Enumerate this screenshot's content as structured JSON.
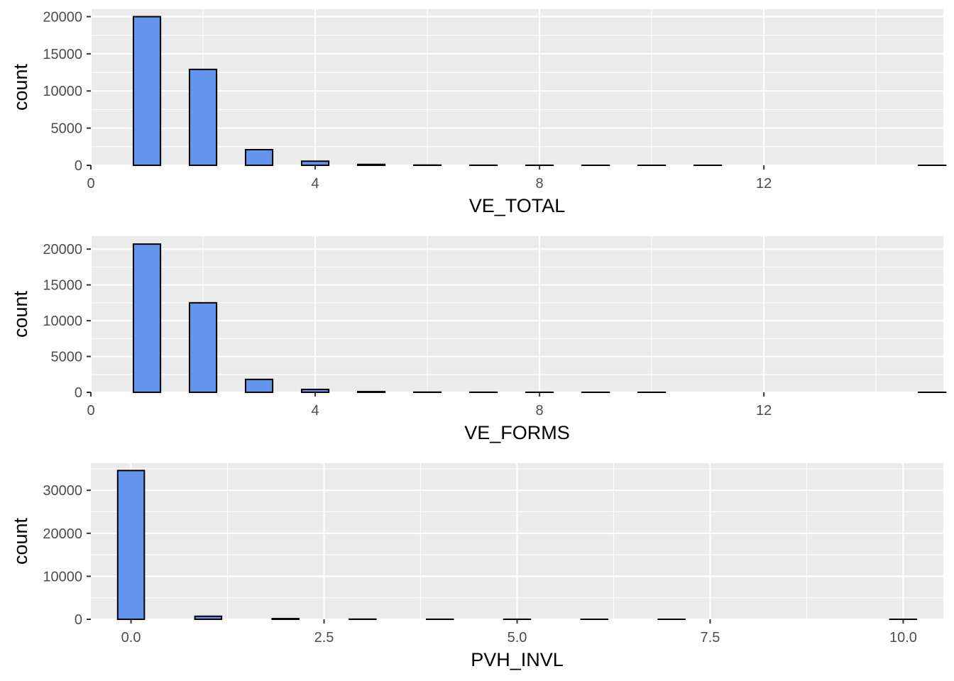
{
  "chart_data": [
    {
      "type": "bar",
      "subtype": "histogram",
      "xlabel": "VE_TOTAL",
      "ylabel": "count",
      "xlim": [
        0,
        15.2
      ],
      "ylim": [
        0,
        21000
      ],
      "xticks": [
        0,
        4,
        8,
        12
      ],
      "xtick_labels": [
        "0",
        "4",
        "8",
        "12"
      ],
      "yticks": [
        0,
        5000,
        10000,
        15000,
        20000
      ],
      "ytick_labels": [
        "0",
        "5000",
        "10000",
        "15000",
        "20000"
      ],
      "bin_width": 0.483,
      "bins": [
        {
          "x": 1,
          "count": 20000
        },
        {
          "x": 2,
          "count": 12900
        },
        {
          "x": 3,
          "count": 2100
        },
        {
          "x": 4,
          "count": 550
        },
        {
          "x": 5,
          "count": 120
        },
        {
          "x": 6,
          "count": 25
        },
        {
          "x": 7,
          "count": 8
        },
        {
          "x": 8,
          "count": 3
        },
        {
          "x": 9,
          "count": 1
        },
        {
          "x": 10,
          "count": 1
        },
        {
          "x": 11,
          "count": 1
        },
        {
          "x": 12,
          "count": 0
        },
        {
          "x": 13,
          "count": 0
        },
        {
          "x": 14,
          "count": 0
        },
        {
          "x": 15,
          "count": 1
        }
      ],
      "bar_color": "#6495ED",
      "grid": true,
      "legend": "none"
    },
    {
      "type": "bar",
      "subtype": "histogram",
      "xlabel": "VE_FORMS",
      "ylabel": "count",
      "xlim": [
        0,
        15.2
      ],
      "ylim": [
        0,
        21800
      ],
      "xticks": [
        0,
        4,
        8,
        12
      ],
      "xtick_labels": [
        "0",
        "4",
        "8",
        "12"
      ],
      "yticks": [
        0,
        5000,
        10000,
        15000,
        20000
      ],
      "ytick_labels": [
        "0",
        "5000",
        "10000",
        "15000",
        "20000"
      ],
      "bin_width": 0.483,
      "bins": [
        {
          "x": 1,
          "count": 20700
        },
        {
          "x": 2,
          "count": 12500
        },
        {
          "x": 3,
          "count": 1800
        },
        {
          "x": 4,
          "count": 400
        },
        {
          "x": 5,
          "count": 90
        },
        {
          "x": 6,
          "count": 20
        },
        {
          "x": 7,
          "count": 6
        },
        {
          "x": 8,
          "count": 2
        },
        {
          "x": 9,
          "count": 1
        },
        {
          "x": 10,
          "count": 1
        },
        {
          "x": 11,
          "count": 0
        },
        {
          "x": 12,
          "count": 0
        },
        {
          "x": 13,
          "count": 0
        },
        {
          "x": 14,
          "count": 0
        },
        {
          "x": 15,
          "count": 1
        }
      ],
      "bar_color": "#6495ED",
      "grid": true,
      "legend": "none"
    },
    {
      "type": "bar",
      "subtype": "histogram",
      "xlabel": "PVH_INVL",
      "ylabel": "count",
      "xlim": [
        -0.52,
        10.52
      ],
      "ylim": [
        0,
        36300
      ],
      "xticks": [
        0,
        2.5,
        5,
        7.5,
        10
      ],
      "xtick_labels": [
        "0.0",
        "2.5",
        "5.0",
        "7.5",
        "10.0"
      ],
      "yticks": [
        0,
        10000,
        20000,
        30000
      ],
      "ytick_labels": [
        "0",
        "10000",
        "20000",
        "30000"
      ],
      "bin_width": 0.345,
      "bins": [
        {
          "x": 0,
          "count": 34600
        },
        {
          "x": 1,
          "count": 700
        },
        {
          "x": 2,
          "count": 150
        },
        {
          "x": 3,
          "count": 30
        },
        {
          "x": 4,
          "count": 8
        },
        {
          "x": 5,
          "count": 3
        },
        {
          "x": 6,
          "count": 1
        },
        {
          "x": 7,
          "count": 1
        },
        {
          "x": 8,
          "count": 0
        },
        {
          "x": 9,
          "count": 0
        },
        {
          "x": 10,
          "count": 1
        }
      ],
      "bar_color": "#6495ED",
      "grid": true,
      "legend": "none"
    }
  ]
}
